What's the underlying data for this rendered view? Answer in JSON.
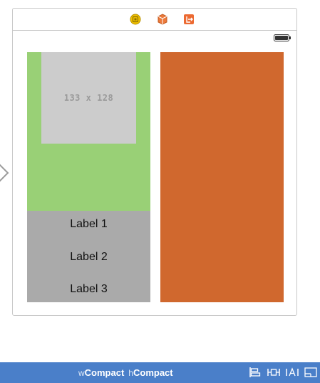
{
  "scene": {
    "dock_icons": [
      "view-controller-icon",
      "first-responder-icon",
      "exit-icon"
    ],
    "image_placeholder": {
      "size_text": "133 x 128"
    },
    "labels": [
      "Label 1",
      "Label 2",
      "Label 3"
    ],
    "colors": {
      "green_view": "#99d076",
      "gray_view": "#aaaaaa",
      "orange_view": "#d0682e",
      "placeholder": "#cccccc"
    }
  },
  "size_class_bar": {
    "width_prefix": "w",
    "width_value": "Compact",
    "height_prefix": "h",
    "height_value": "Compact",
    "tools": [
      "align-icon",
      "pin-icon",
      "resolve-icon",
      "resizing-icon"
    ],
    "color": "#4a7fc9"
  }
}
